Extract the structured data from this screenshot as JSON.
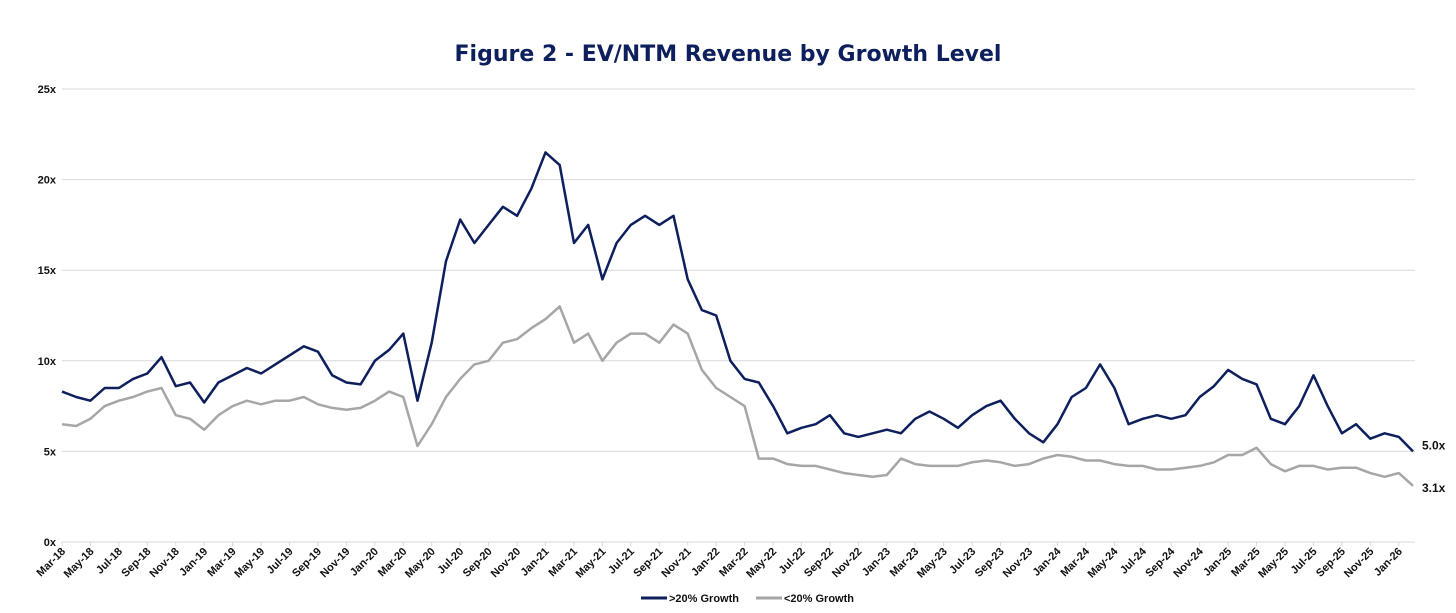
{
  "chart_data": {
    "type": "line",
    "title": "Figure 2 - EV/NTM Revenue by Growth Level",
    "xlabel": "",
    "ylabel": "",
    "ylim": [
      0,
      25
    ],
    "y_ticks": [
      "0x",
      "5x",
      "10x",
      "15x",
      "20x",
      "25x"
    ],
    "x_tick_labels": [
      "Mar-18",
      "May-18",
      "Jul-18",
      "Sep-18",
      "Nov-18",
      "Jan-19",
      "Mar-19",
      "May-19",
      "Jul-19",
      "Sep-19",
      "Nov-19",
      "Jan-20",
      "Mar-20",
      "May-20",
      "Jul-20",
      "Sep-20",
      "Nov-20",
      "Jan-21",
      "Mar-21",
      "May-21",
      "Jul-21",
      "Sep-21",
      "Nov-21",
      "Jan-22",
      "Mar-22",
      "May-22",
      "Jul-22",
      "Sep-22",
      "Nov-22",
      "Jan-23",
      "Mar-23",
      "May-23",
      "Jul-23",
      "Sep-23",
      "Nov-23",
      "Jan-24",
      "Mar-24",
      "May-24",
      "Jul-24",
      "Sep-24",
      "Nov-24",
      "Jan-25",
      "Mar-25",
      "May-25",
      "Jul-25",
      "Sep-25",
      "Nov-25",
      "Jan-26"
    ],
    "x_start": "Mar-18",
    "x_step": "1 month",
    "grid": true,
    "legend_position": "bottom",
    "series": [
      {
        "name": ">20% Growth",
        "color": "#0d1f5c",
        "end_label": "5.0x",
        "values": [
          8.3,
          8.0,
          7.8,
          8.5,
          8.5,
          9.0,
          9.3,
          10.2,
          8.6,
          8.8,
          7.7,
          8.8,
          9.2,
          9.6,
          9.3,
          9.8,
          10.3,
          10.8,
          10.5,
          9.2,
          8.8,
          8.7,
          10.0,
          10.6,
          11.5,
          7.8,
          11.0,
          15.5,
          17.8,
          16.5,
          17.5,
          18.5,
          18.0,
          19.5,
          21.5,
          20.8,
          16.5,
          17.5,
          14.5,
          16.5,
          17.5,
          18.0,
          17.5,
          18.0,
          14.5,
          12.8,
          12.5,
          10.0,
          9.0,
          8.8,
          7.5,
          6.0,
          6.3,
          6.5,
          7.0,
          6.0,
          5.8,
          6.0,
          6.2,
          6.0,
          6.8,
          7.2,
          6.8,
          6.3,
          7.0,
          7.5,
          7.8,
          6.8,
          6.0,
          5.5,
          6.5,
          8.0,
          8.5,
          9.8,
          8.5,
          6.5,
          6.8,
          7.0,
          6.8,
          7.0,
          8.0,
          8.6,
          9.5,
          9.0,
          8.7,
          6.8,
          6.5,
          7.5,
          9.2,
          7.5,
          6.0,
          6.5,
          5.7,
          6.0,
          5.8,
          5.0
        ]
      },
      {
        "name": "<20% Growth",
        "color": "#a6a6a6",
        "end_label": "3.1x",
        "values": [
          6.5,
          6.4,
          6.8,
          7.5,
          7.8,
          8.0,
          8.3,
          8.5,
          7.0,
          6.8,
          6.2,
          7.0,
          7.5,
          7.8,
          7.6,
          7.8,
          7.8,
          8.0,
          7.6,
          7.4,
          7.3,
          7.4,
          7.8,
          8.3,
          8.0,
          5.3,
          6.5,
          8.0,
          9.0,
          9.8,
          10.0,
          11.0,
          11.2,
          11.8,
          12.3,
          13.0,
          11.0,
          11.5,
          10.0,
          11.0,
          11.5,
          11.5,
          11.0,
          12.0,
          11.5,
          9.5,
          8.5,
          8.0,
          7.5,
          4.6,
          4.6,
          4.3,
          4.2,
          4.2,
          4.0,
          3.8,
          3.7,
          3.6,
          3.7,
          4.6,
          4.3,
          4.2,
          4.2,
          4.2,
          4.4,
          4.5,
          4.4,
          4.2,
          4.3,
          4.6,
          4.8,
          4.7,
          4.5,
          4.5,
          4.3,
          4.2,
          4.2,
          4.0,
          4.0,
          4.1,
          4.2,
          4.4,
          4.8,
          4.8,
          5.2,
          4.3,
          3.9,
          4.2,
          4.2,
          4.0,
          4.1,
          4.1,
          3.8,
          3.6,
          3.8,
          3.1
        ]
      }
    ]
  }
}
